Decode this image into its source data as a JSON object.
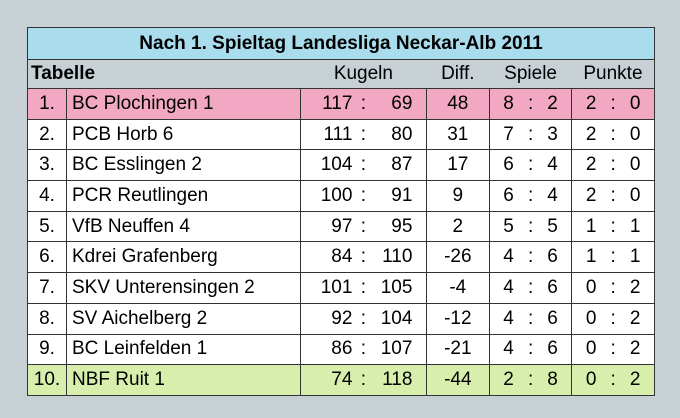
{
  "table": {
    "title": "Nach 1. Spieltag Landesliga Neckar-Alb 2011",
    "header": [
      "Tabelle",
      "Kugeln",
      "Diff.",
      "Spiele",
      "Punkte"
    ],
    "separator": ":",
    "rows": [
      {
        "rank": "1.",
        "team": "BC Plochingen 1",
        "kugeln": [
          117,
          69
        ],
        "diff": 48,
        "spiele": [
          8,
          2
        ],
        "punkte": [
          2,
          0
        ]
      },
      {
        "rank": "2.",
        "team": "PCB Horb 6",
        "kugeln": [
          111,
          80
        ],
        "diff": 31,
        "spiele": [
          7,
          3
        ],
        "punkte": [
          2,
          0
        ]
      },
      {
        "rank": "3.",
        "team": "BC Esslingen 2",
        "kugeln": [
          104,
          87
        ],
        "diff": 17,
        "spiele": [
          6,
          4
        ],
        "punkte": [
          2,
          0
        ]
      },
      {
        "rank": "4.",
        "team": "PCR Reutlingen",
        "kugeln": [
          100,
          91
        ],
        "diff": 9,
        "spiele": [
          6,
          4
        ],
        "punkte": [
          2,
          0
        ]
      },
      {
        "rank": "5.",
        "team": "VfB Neuffen 4",
        "kugeln": [
          97,
          95
        ],
        "diff": 2,
        "spiele": [
          5,
          5
        ],
        "punkte": [
          1,
          1
        ]
      },
      {
        "rank": "6.",
        "team": "Kdrei Grafenberg",
        "kugeln": [
          84,
          110
        ],
        "diff": -26,
        "spiele": [
          4,
          6
        ],
        "punkte": [
          1,
          1
        ]
      },
      {
        "rank": "7.",
        "team": "SKV Unterensingen 2",
        "kugeln": [
          101,
          105
        ],
        "diff": -4,
        "spiele": [
          4,
          6
        ],
        "punkte": [
          0,
          2
        ]
      },
      {
        "rank": "8.",
        "team": "SV Aichelberg 2",
        "kugeln": [
          92,
          104
        ],
        "diff": -12,
        "spiele": [
          4,
          6
        ],
        "punkte": [
          0,
          2
        ]
      },
      {
        "rank": "9.",
        "team": "BC Leinfelden 1",
        "kugeln": [
          86,
          107
        ],
        "diff": -21,
        "spiele": [
          4,
          6
        ],
        "punkte": [
          0,
          2
        ]
      },
      {
        "rank": "10.",
        "team": "NBF Ruit 1",
        "kugeln": [
          74,
          118
        ],
        "diff": -44,
        "spiele": [
          2,
          8
        ],
        "punkte": [
          0,
          2
        ]
      }
    ]
  }
}
